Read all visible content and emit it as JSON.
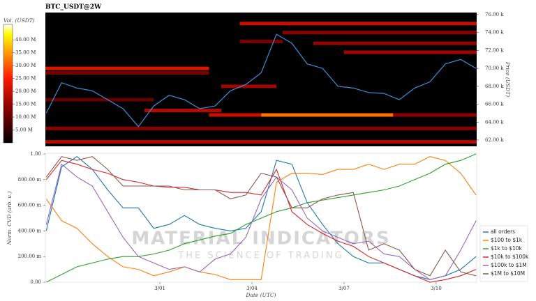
{
  "chart_data": [
    {
      "type": "heatmap",
      "title": "BTC_USDT@2W",
      "y_label": "Price (USDT)",
      "colorbar_label": "Vol. (USDT)",
      "xlim": [
        -2.73,
        11.32
      ],
      "ylim": [
        61300,
        76230
      ],
      "clim": [
        0,
        46000000
      ],
      "yticks": [
        {
          "value": 62000,
          "label": "62.00 k"
        },
        {
          "value": 64000,
          "label": "64.00 k"
        },
        {
          "value": 66000,
          "label": "66.00 k"
        },
        {
          "value": 68000,
          "label": "68.00 k"
        },
        {
          "value": 70000,
          "label": "70.00 k"
        },
        {
          "value": 72000,
          "label": "72.00 k"
        },
        {
          "value": 74000,
          "label": "74.00 k"
        },
        {
          "value": 76000,
          "label": "76.00 k"
        }
      ],
      "cticks": [
        {
          "value": 5000000,
          "label": "5.00 M"
        },
        {
          "value": 10000000,
          "label": "10.00 M"
        },
        {
          "value": 15000000,
          "label": "15.00 M"
        },
        {
          "value": 20000000,
          "label": "20.00 M"
        },
        {
          "value": 25000000,
          "label": "25.00 M"
        },
        {
          "value": 30000000,
          "label": "30.00 M"
        },
        {
          "value": 35000000,
          "label": "35.00 M"
        },
        {
          "value": 40000000,
          "label": "40.00 M"
        }
      ],
      "levels": [
        {
          "price": 61800,
          "x0": -2.73,
          "x1": 11.32,
          "volume": 18000000
        },
        {
          "price": 63300,
          "x0": -2.73,
          "x1": 11.32,
          "volume": 14000000
        },
        {
          "price": 64800,
          "x0": 2.6,
          "x1": 4.3,
          "volume": 20000000
        },
        {
          "price": 64800,
          "x0": 4.3,
          "x1": 8.6,
          "volume": 32000000
        },
        {
          "price": 64800,
          "x0": 8.6,
          "x1": 11.32,
          "volume": 14000000
        },
        {
          "price": 65300,
          "x0": 0.5,
          "x1": 3.0,
          "volume": 18000000
        },
        {
          "price": 66500,
          "x0": -2.73,
          "x1": 0.8,
          "volume": 10000000
        },
        {
          "price": 68000,
          "x0": 3.0,
          "x1": 4.8,
          "volume": 16000000
        },
        {
          "price": 69500,
          "x0": -2.73,
          "x1": 2.6,
          "volume": 12000000
        },
        {
          "price": 70000,
          "x0": -2.73,
          "x1": 2.6,
          "volume": 22000000
        },
        {
          "price": 71800,
          "x0": 7.0,
          "x1": 11.32,
          "volume": 16000000
        },
        {
          "price": 72800,
          "x0": 6.0,
          "x1": 11.32,
          "volume": 15000000
        },
        {
          "price": 73000,
          "x0": 3.6,
          "x1": 5.0,
          "volume": 12000000
        },
        {
          "price": 74000,
          "x0": 5.0,
          "x1": 11.32,
          "volume": 14000000
        },
        {
          "price": 75000,
          "x0": 3.6,
          "x1": 11.32,
          "volume": 20000000
        }
      ],
      "x": [
        -2.7,
        -2.2,
        -1.7,
        -1.2,
        -0.7,
        -0.2,
        0.3,
        0.8,
        1.3,
        1.8,
        2.3,
        2.8,
        3.3,
        3.8,
        4.3,
        4.8,
        5.3,
        5.8,
        6.3,
        6.8,
        7.3,
        7.8,
        8.3,
        8.8,
        9.3,
        9.8,
        10.3,
        10.8,
        11.3
      ],
      "series": [
        {
          "color": "#3a8fd8",
          "values": [
            65000,
            68400,
            67800,
            67500,
            66500,
            65500,
            63500,
            65800,
            67000,
            66500,
            65500,
            65800,
            67500,
            68200,
            69500,
            73800,
            72800,
            70500,
            70000,
            68000,
            67800,
            67300,
            67200,
            66500,
            67800,
            68500,
            70500,
            71000,
            70000
          ]
        }
      ]
    },
    {
      "type": "line",
      "y_label": "Norm. CVD (arb. u.)",
      "x_label": "Date (UTC)",
      "xlim": [
        -2.73,
        11.32
      ],
      "ylim": [
        0,
        1
      ],
      "xticks": [
        {
          "value": 1,
          "label": "3/01"
        },
        {
          "value": 4,
          "label": "3/04"
        },
        {
          "value": 7,
          "label": "3/07"
        },
        {
          "value": 10,
          "label": "3/10"
        }
      ],
      "yticks": [
        {
          "value": 0,
          "label": "0.00"
        },
        {
          "value": 0.2,
          "label": "200.00 m"
        },
        {
          "value": 0.4,
          "label": "400.00 m"
        },
        {
          "value": 0.6,
          "label": "600.00 m"
        },
        {
          "value": 0.8,
          "label": "800.00 m"
        },
        {
          "value": 1,
          "label": "1.00"
        }
      ],
      "watermark": [
        "MATERIAL INDICATORS",
        "THE SCIENCE OF TRADING"
      ],
      "x": [
        -2.7,
        -2.2,
        -1.7,
        -1.2,
        -0.7,
        -0.2,
        0.3,
        0.8,
        1.3,
        1.8,
        2.3,
        2.8,
        3.3,
        3.8,
        4.3,
        4.8,
        5.3,
        5.8,
        6.3,
        6.8,
        7.3,
        7.8,
        8.3,
        8.8,
        9.3,
        9.8,
        10.3,
        10.8,
        11.3
      ],
      "series": [
        {
          "name": "all orders",
          "color": "#1f77b4",
          "values": [
            0.4,
            0.9,
            0.98,
            0.88,
            0.72,
            0.58,
            0.58,
            0.42,
            0.45,
            0.52,
            0.45,
            0.42,
            0.4,
            0.42,
            0.55,
            0.95,
            0.92,
            0.62,
            0.45,
            0.3,
            0.2,
            0.15,
            0.15,
            0.1,
            0.05,
            0.02,
            0.05,
            0.1,
            0.2
          ]
        },
        {
          "name": "$100 to $1k",
          "color": "#ff7f0e",
          "values": [
            0.65,
            0.48,
            0.42,
            0.3,
            0.2,
            0.12,
            0.1,
            0.05,
            0.08,
            0.12,
            0.08,
            0.06,
            0.02,
            0.02,
            0.02,
            0.78,
            0.85,
            0.85,
            0.84,
            0.88,
            0.88,
            0.92,
            0.88,
            0.92,
            0.92,
            0.98,
            0.95,
            0.85,
            0.68
          ]
        },
        {
          "name": "$1k to $10k",
          "color": "#2ca02c",
          "values": [
            0.0,
            0.06,
            0.12,
            0.15,
            0.18,
            0.2,
            0.2,
            0.22,
            0.25,
            0.3,
            0.33,
            0.36,
            0.38,
            0.45,
            0.5,
            0.55,
            0.58,
            0.62,
            0.64,
            0.66,
            0.68,
            0.7,
            0.72,
            0.75,
            0.8,
            0.85,
            0.92,
            0.95,
            1.0
          ]
        },
        {
          "name": "$10k to $100k",
          "color": "#d62728",
          "values": [
            0.8,
            0.95,
            0.92,
            0.88,
            0.85,
            0.8,
            0.78,
            0.75,
            0.74,
            0.74,
            0.72,
            0.72,
            0.7,
            0.7,
            0.68,
            0.88,
            0.55,
            0.45,
            0.38,
            0.32,
            0.28,
            0.2,
            0.15,
            0.1,
            0.05,
            0.0,
            0.02,
            0.05,
            0.1
          ]
        },
        {
          "name": "$100k to $1M",
          "color": "#9467bd",
          "values": [
            0.45,
            0.92,
            0.82,
            0.75,
            0.55,
            0.35,
            0.2,
            0.15,
            0.1,
            0.12,
            0.08,
            0.18,
            0.22,
            0.35,
            0.65,
            0.82,
            0.72,
            0.5,
            0.4,
            0.35,
            0.3,
            0.32,
            0.22,
            0.2,
            0.1,
            0.02,
            0.05,
            0.25,
            0.48
          ]
        },
        {
          "name": "$1M to $10M",
          "color": "#8c564b",
          "values": [
            0.82,
            0.98,
            0.95,
            0.98,
            0.88,
            0.75,
            0.75,
            0.75,
            0.75,
            0.72,
            0.72,
            0.72,
            0.65,
            0.68,
            0.85,
            0.82,
            0.58,
            0.58,
            0.65,
            0.68,
            0.7,
            0.25,
            0.3,
            0.25,
            0.1,
            0.05,
            0.25,
            0.08,
            0.05
          ]
        }
      ]
    }
  ]
}
